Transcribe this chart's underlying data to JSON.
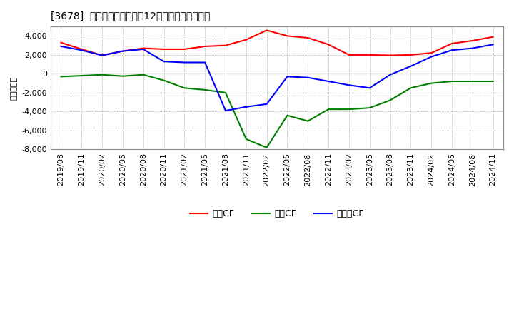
{
  "title": "[3678]  キャッシュフローの12か月移動合計の推移",
  "ylabel": "（百万円）",
  "ylim": [
    -8000,
    5000
  ],
  "yticks": [
    -8000,
    -6000,
    -4000,
    -2000,
    0,
    2000,
    4000
  ],
  "background_color": "#ffffff",
  "plot_bg_color": "#ffffff",
  "grid_color": "#aaaaaa",
  "x_labels": [
    "2019/08",
    "2019/11",
    "2020/02",
    "2020/05",
    "2020/08",
    "2020/11",
    "2021/02",
    "2021/05",
    "2021/08",
    "2021/11",
    "2022/02",
    "2022/05",
    "2022/08",
    "2022/11",
    "2023/02",
    "2023/05",
    "2023/08",
    "2023/11",
    "2024/02",
    "2024/05",
    "2024/08",
    "2024/11"
  ],
  "eigyo_cf": [
    3300,
    2600,
    1950,
    2400,
    2700,
    2600,
    2600,
    2900,
    3000,
    3600,
    4600,
    4000,
    3800,
    3100,
    2000,
    2000,
    1950,
    2000,
    2200,
    3200,
    3500,
    3900
  ],
  "toshi_cf": [
    -300,
    -200,
    -100,
    -250,
    -100,
    -700,
    -1500,
    -1700,
    -2000,
    -6900,
    -7800,
    -4400,
    -5000,
    -3750,
    -3750,
    -3600,
    -2800,
    -1500,
    -1000,
    -800,
    -800,
    -800
  ],
  "free_cf": [
    2900,
    2500,
    1950,
    2400,
    2600,
    1300,
    1200,
    1200,
    -3900,
    -3500,
    -3200,
    -300,
    -400,
    -800,
    -1200,
    -1500,
    -100,
    800,
    1800,
    2500,
    2700,
    3100
  ],
  "eigyo_color": "#ff0000",
  "toshi_color": "#008000",
  "free_color": "#0000ff",
  "legend_labels": [
    "営業CF",
    "投資CF",
    "フリーCF"
  ]
}
